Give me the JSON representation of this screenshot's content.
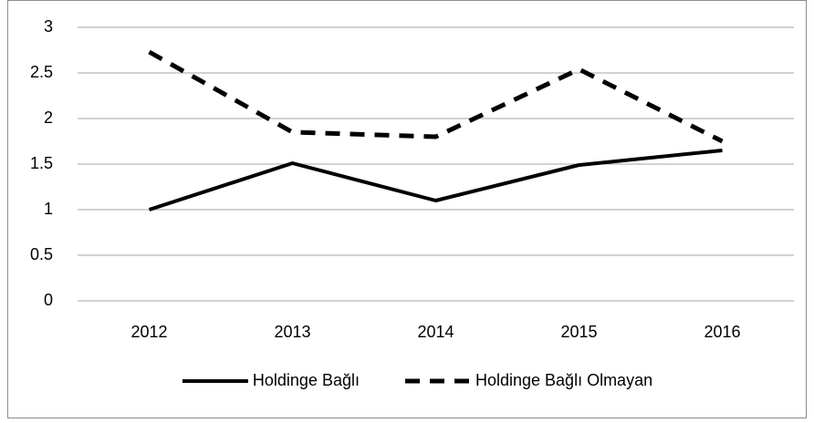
{
  "chart_data": {
    "type": "line",
    "categories": [
      "2012",
      "2013",
      "2014",
      "2015",
      "2016"
    ],
    "series": [
      {
        "name": "Holdinge Bağlı",
        "color": "#000000",
        "dashed": false,
        "values": [
          1.0,
          1.51,
          1.1,
          1.49,
          1.65
        ]
      },
      {
        "name": "Holdinge Bağlı Olmayan",
        "color": "#000000",
        "dashed": true,
        "values": [
          2.73,
          1.85,
          1.8,
          2.54,
          1.75
        ]
      }
    ],
    "ylim": [
      0,
      3
    ],
    "yticks": [
      0,
      0.5,
      1,
      1.5,
      2,
      2.5,
      3
    ],
    "grid": true,
    "legend": "bottom"
  }
}
